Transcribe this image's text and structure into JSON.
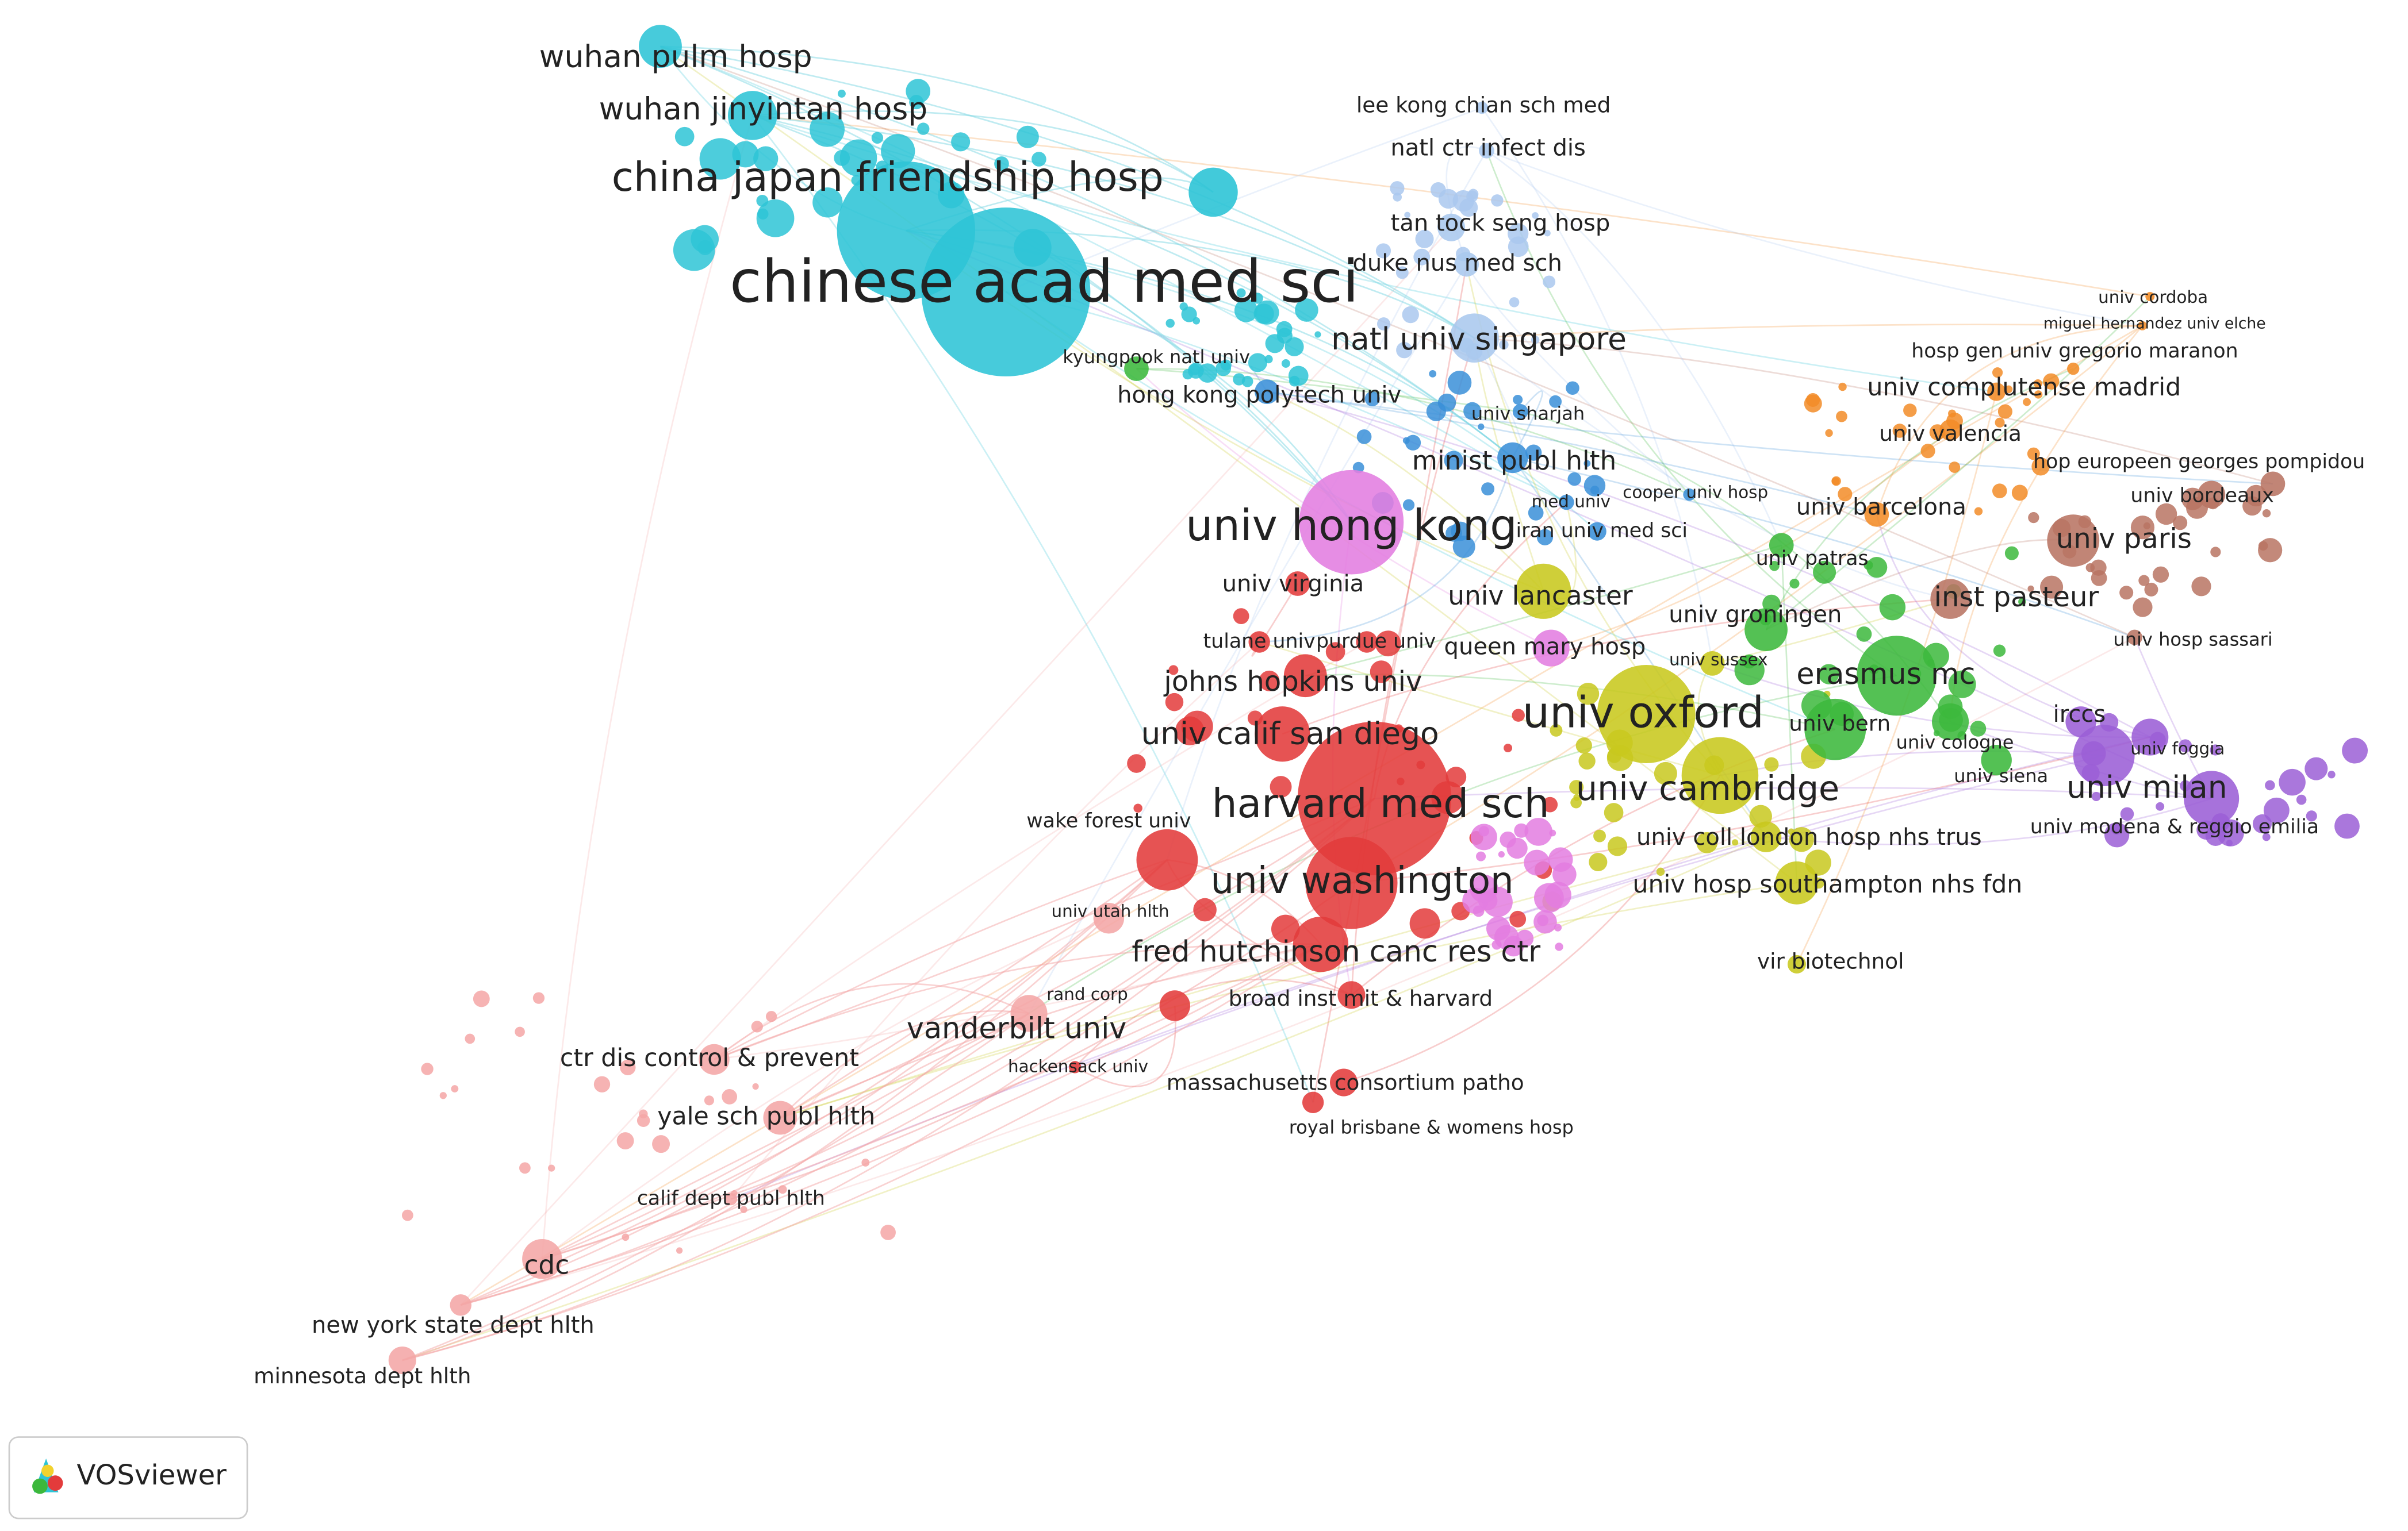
{
  "nodes": [
    {
      "label": "wuhan pulm hosp"
    },
    {
      "label": "wuhan jinyintan hosp"
    },
    {
      "label": "china japan friendship hosp"
    },
    {
      "label": "chinese acad med sci"
    },
    {
      "label": "lee kong chian sch med"
    },
    {
      "label": "natl ctr infect dis"
    },
    {
      "label": "tan tock seng hosp"
    },
    {
      "label": "duke nus med sch"
    },
    {
      "label": "natl univ singapore"
    },
    {
      "label": "kyungpook natl univ"
    },
    {
      "label": "hong kong polytech univ"
    },
    {
      "label": "univ sharjah"
    },
    {
      "label": "minist publ hlth"
    },
    {
      "label": "med univ"
    },
    {
      "label": "cooper univ hosp"
    },
    {
      "label": "iran univ med sci"
    },
    {
      "label": "univ hong kong"
    },
    {
      "label": "univ virginia"
    },
    {
      "label": "tulane univ"
    },
    {
      "label": "purdue univ"
    },
    {
      "label": "johns hopkins univ"
    },
    {
      "label": "univ calif san diego"
    },
    {
      "label": "harvard med sch"
    },
    {
      "label": "wake forest univ"
    },
    {
      "label": "univ washington"
    },
    {
      "label": "univ utah hlth"
    },
    {
      "label": "fred hutchinson canc res ctr"
    },
    {
      "label": "rand corp"
    },
    {
      "label": "broad inst mit & harvard"
    },
    {
      "label": "vanderbilt univ"
    },
    {
      "label": "hackensack univ"
    },
    {
      "label": "massachusetts consortium patho"
    },
    {
      "label": "royal brisbane & womens hosp"
    },
    {
      "label": "ctr dis control & prevent"
    },
    {
      "label": "yale sch publ hlth"
    },
    {
      "label": "calif dept publ hlth"
    },
    {
      "label": "cdc"
    },
    {
      "label": "new york state dept hlth"
    },
    {
      "label": "minnesota dept hlth"
    },
    {
      "label": "univ lancaster"
    },
    {
      "label": "queen mary hosp"
    },
    {
      "label": "univ sussex"
    },
    {
      "label": "univ oxford"
    },
    {
      "label": "univ cambridge"
    },
    {
      "label": "univ coll london hosp nhs trus"
    },
    {
      "label": "univ hosp southampton nhs fdn"
    },
    {
      "label": "vir biotechnol"
    },
    {
      "label": "univ groningen"
    },
    {
      "label": "erasmus mc"
    },
    {
      "label": "univ bern"
    },
    {
      "label": "univ cologne"
    },
    {
      "label": "univ siena"
    },
    {
      "label": "univ patras"
    },
    {
      "label": "univ cordoba"
    },
    {
      "label": "miguel hernandez univ elche"
    },
    {
      "label": "hosp gen univ gregorio maranon"
    },
    {
      "label": "univ complutense madrid"
    },
    {
      "label": "univ valencia"
    },
    {
      "label": "univ barcelona"
    },
    {
      "label": "hop europeen georges pompidou"
    },
    {
      "label": "univ bordeaux"
    },
    {
      "label": "univ paris"
    },
    {
      "label": "inst pasteur"
    },
    {
      "label": "univ hosp sassari"
    },
    {
      "label": "irccs"
    },
    {
      "label": "univ foggia"
    },
    {
      "label": "univ milan"
    },
    {
      "label": "univ modena & reggio emilia"
    }
  ],
  "logo": {
    "text": "VOSviewer"
  }
}
